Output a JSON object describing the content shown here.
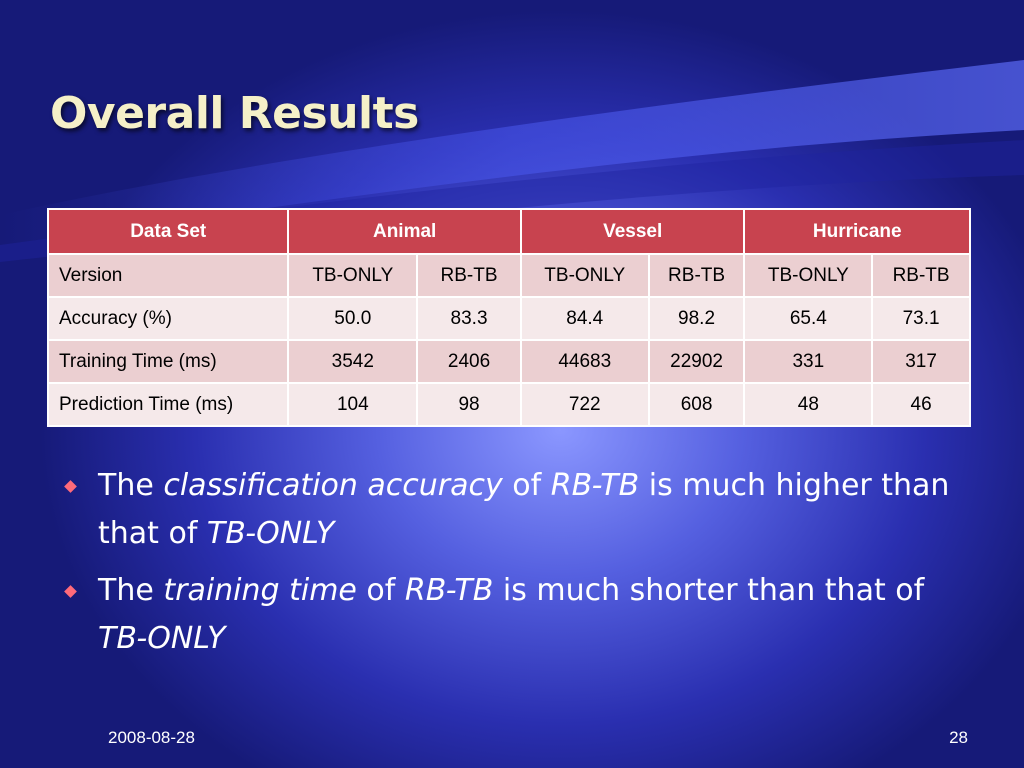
{
  "slide": {
    "title": "Overall Results",
    "date": "2008-08-28",
    "page_number": "28"
  },
  "table": {
    "header": {
      "data_set": "Data Set",
      "groups": [
        "Animal",
        "Vessel",
        "Hurricane"
      ]
    },
    "rows": [
      {
        "label": "Version",
        "cells": [
          "TB-ONLY",
          "RB-TB",
          "TB-ONLY",
          "RB-TB",
          "TB-ONLY",
          "RB-TB"
        ]
      },
      {
        "label": "Accuracy (%)",
        "cells": [
          "50.0",
          "83.3",
          "84.4",
          "98.2",
          "65.4",
          "73.1"
        ]
      },
      {
        "label": "Training Time (ms)",
        "cells": [
          "3542",
          "2406",
          "44683",
          "22902",
          "331",
          "317"
        ]
      },
      {
        "label": "Prediction Time (ms)",
        "cells": [
          "104",
          "98",
          "722",
          "608",
          "48",
          "46"
        ]
      }
    ]
  },
  "bullets": [
    {
      "parts": [
        "The ",
        "classification accuracy",
        " of ",
        "RB-TB",
        " is much higher than that of ",
        "TB-ONLY"
      ]
    },
    {
      "parts": [
        "The ",
        "training time",
        " of ",
        "RB-TB",
        " is much shorter than that of ",
        "TB-ONLY"
      ]
    }
  ],
  "colors": {
    "header_bg": "#c8434f",
    "row_odd": "#ebcfd1",
    "row_even": "#f5e9ea",
    "title": "#f5f0c8",
    "bullet": "#ff6a7a"
  }
}
